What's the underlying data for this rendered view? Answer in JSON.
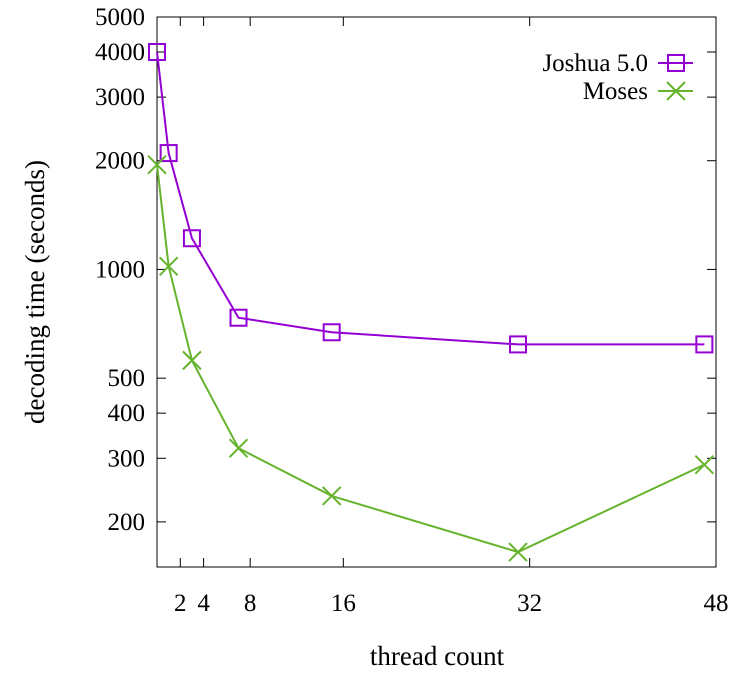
{
  "chart_data": {
    "type": "line",
    "xlabel": "thread count",
    "ylabel": "decoding time (seconds)",
    "x_scale": "linear",
    "y_scale": "log",
    "xlim": [
      0,
      48
    ],
    "ylim": [
      150,
      5000
    ],
    "x_ticks": [
      2,
      4,
      8,
      16,
      32,
      48
    ],
    "y_ticks": [
      200,
      300,
      400,
      500,
      1000,
      2000,
      3000,
      4000,
      5000
    ],
    "grid": false,
    "legend_position": "top-right",
    "series": [
      {
        "name": "Joshua 5.0",
        "marker": "square",
        "color": "#9400d3",
        "x": [
          0,
          1,
          3,
          7,
          15,
          31,
          47
        ],
        "y": [
          4000,
          2100,
          1220,
          735,
          670,
          620,
          620
        ]
      },
      {
        "name": "Moses",
        "marker": "x",
        "color": "#66b32e",
        "x": [
          0,
          1,
          3,
          7,
          15,
          31,
          47
        ],
        "y": [
          1950,
          1020,
          560,
          320,
          236,
          165,
          288
        ]
      }
    ]
  }
}
